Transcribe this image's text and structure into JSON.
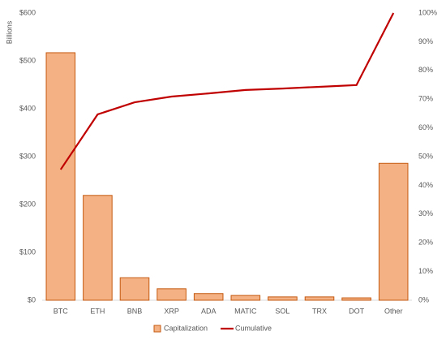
{
  "chart_data": {
    "type": "pareto",
    "y_label": "Billions",
    "categories": [
      "BTC",
      "ETH",
      "BNB",
      "XRP",
      "ADA",
      "MATIC",
      "SOL",
      "TRX",
      "DOT",
      "Other"
    ],
    "series": [
      {
        "name": "Capitalization",
        "type": "bar",
        "color": "#f4b183",
        "edge_color": "#c55a11",
        "values": [
          517,
          219,
          47,
          24,
          14,
          10,
          7,
          7,
          5,
          286
        ]
      },
      {
        "name": "Cumulative",
        "type": "line",
        "axis": "y2",
        "color": "#c00000",
        "values": [
          45.5,
          64.7,
          68.9,
          70.9,
          72,
          73.2,
          73.7,
          74.3,
          74.9,
          100
        ]
      }
    ],
    "ylim": [
      0,
      600
    ],
    "yticks": [
      {
        "value": 0,
        "label": "$0"
      },
      {
        "value": 100,
        "label": "$100"
      },
      {
        "value": 200,
        "label": "$200"
      },
      {
        "value": 300,
        "label": "$300"
      },
      {
        "value": 400,
        "label": "$400"
      },
      {
        "value": 500,
        "label": "$500"
      },
      {
        "value": 600,
        "label": "$600"
      }
    ],
    "y2lim": [
      0,
      100
    ],
    "y2ticks": [
      {
        "value": 0,
        "label": "0%"
      },
      {
        "value": 10,
        "label": "10%"
      },
      {
        "value": 20,
        "label": "20%"
      },
      {
        "value": 30,
        "label": "30%"
      },
      {
        "value": 40,
        "label": "40%"
      },
      {
        "value": 50,
        "label": "50%"
      },
      {
        "value": 60,
        "label": "60%"
      },
      {
        "value": 70,
        "label": "70%"
      },
      {
        "value": 80,
        "label": "80%"
      },
      {
        "value": 90,
        "label": "90%"
      },
      {
        "value": 100,
        "label": "100%"
      }
    ],
    "grid": false,
    "legend": "bottom"
  }
}
